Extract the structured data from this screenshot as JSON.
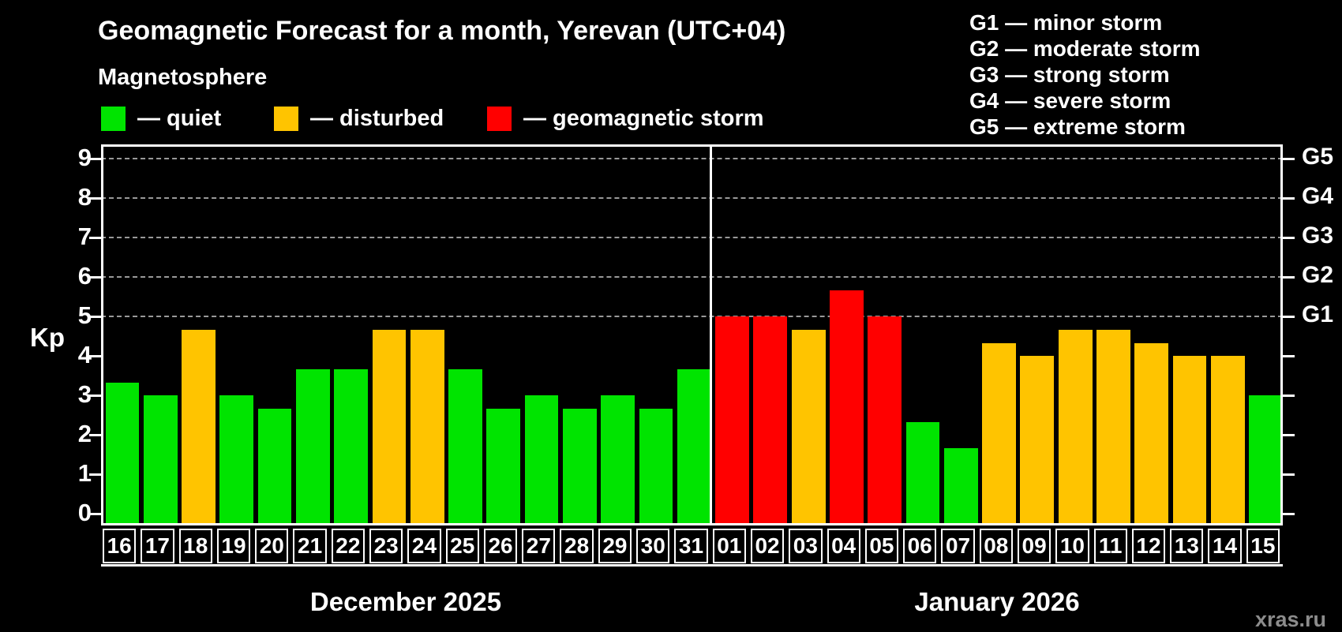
{
  "title": "Geomagnetic Forecast for a month, Yerevan (UTC+04)",
  "subtitle": "Magnetosphere",
  "legend": {
    "items": [
      {
        "key": "quiet",
        "label": "— quiet",
        "color": "#00e400"
      },
      {
        "key": "disturbed",
        "label": "— disturbed",
        "color": "#ffc400"
      },
      {
        "key": "storm",
        "label": "— geomagnetic storm",
        "color": "#ff0000"
      }
    ]
  },
  "g_scale_legend": [
    "G1 — minor storm",
    "G2 — moderate storm",
    "G3 — strong storm",
    "G4 — severe storm",
    "G5 — extreme storm"
  ],
  "watermark": "xras.ru",
  "chart_data": {
    "type": "bar",
    "title": "Geomagnetic Forecast for a month, Yerevan (UTC+04)",
    "ylabel": "Kp",
    "ylim": [
      -0.3,
      9.37
    ],
    "yticks": [
      0,
      1,
      2,
      3,
      4,
      5,
      6,
      7,
      8,
      9
    ],
    "gridlines_at": [
      5,
      6,
      7,
      8,
      9
    ],
    "grid": "dashed horizontal at Kp 5-9 only",
    "legend_position": "above plot, left",
    "g_levels": [
      {
        "label": "G1",
        "kp": 5
      },
      {
        "label": "G2",
        "kp": 6
      },
      {
        "label": "G3",
        "kp": 7
      },
      {
        "label": "G4",
        "kp": 8
      },
      {
        "label": "G5",
        "kp": 9
      }
    ],
    "condition_colors": {
      "quiet": "#00e400",
      "disturbed": "#ffc400",
      "storm": "#ff0000"
    },
    "months": [
      {
        "label": "December 2025",
        "key": "dec",
        "days": [
          {
            "date": "16",
            "kp": 3.33,
            "condition": "quiet"
          },
          {
            "date": "17",
            "kp": 3.0,
            "condition": "quiet"
          },
          {
            "date": "18",
            "kp": 4.67,
            "condition": "disturbed"
          },
          {
            "date": "19",
            "kp": 3.0,
            "condition": "quiet"
          },
          {
            "date": "20",
            "kp": 2.67,
            "condition": "quiet"
          },
          {
            "date": "21",
            "kp": 3.67,
            "condition": "quiet"
          },
          {
            "date": "22",
            "kp": 3.67,
            "condition": "quiet"
          },
          {
            "date": "23",
            "kp": 4.67,
            "condition": "disturbed"
          },
          {
            "date": "24",
            "kp": 4.67,
            "condition": "disturbed"
          },
          {
            "date": "25",
            "kp": 3.67,
            "condition": "quiet"
          },
          {
            "date": "26",
            "kp": 2.67,
            "condition": "quiet"
          },
          {
            "date": "27",
            "kp": 3.0,
            "condition": "quiet"
          },
          {
            "date": "28",
            "kp": 2.67,
            "condition": "quiet"
          },
          {
            "date": "29",
            "kp": 3.0,
            "condition": "quiet"
          },
          {
            "date": "30",
            "kp": 2.67,
            "condition": "quiet"
          },
          {
            "date": "31",
            "kp": 3.67,
            "condition": "quiet"
          }
        ]
      },
      {
        "label": "January 2026",
        "key": "jan",
        "days": [
          {
            "date": "01",
            "kp": 5.0,
            "condition": "storm"
          },
          {
            "date": "02",
            "kp": 5.0,
            "condition": "storm"
          },
          {
            "date": "03",
            "kp": 4.67,
            "condition": "disturbed"
          },
          {
            "date": "04",
            "kp": 5.67,
            "condition": "storm"
          },
          {
            "date": "05",
            "kp": 5.0,
            "condition": "storm"
          },
          {
            "date": "06",
            "kp": 2.33,
            "condition": "quiet"
          },
          {
            "date": "07",
            "kp": 1.67,
            "condition": "quiet"
          },
          {
            "date": "08",
            "kp": 4.33,
            "condition": "disturbed"
          },
          {
            "date": "09",
            "kp": 4.0,
            "condition": "disturbed"
          },
          {
            "date": "10",
            "kp": 4.67,
            "condition": "disturbed"
          },
          {
            "date": "11",
            "kp": 4.67,
            "condition": "disturbed"
          },
          {
            "date": "12",
            "kp": 4.33,
            "condition": "disturbed"
          },
          {
            "date": "13",
            "kp": 4.0,
            "condition": "disturbed"
          },
          {
            "date": "14",
            "kp": 4.0,
            "condition": "disturbed"
          },
          {
            "date": "15",
            "kp": 3.0,
            "condition": "quiet"
          }
        ]
      }
    ]
  }
}
